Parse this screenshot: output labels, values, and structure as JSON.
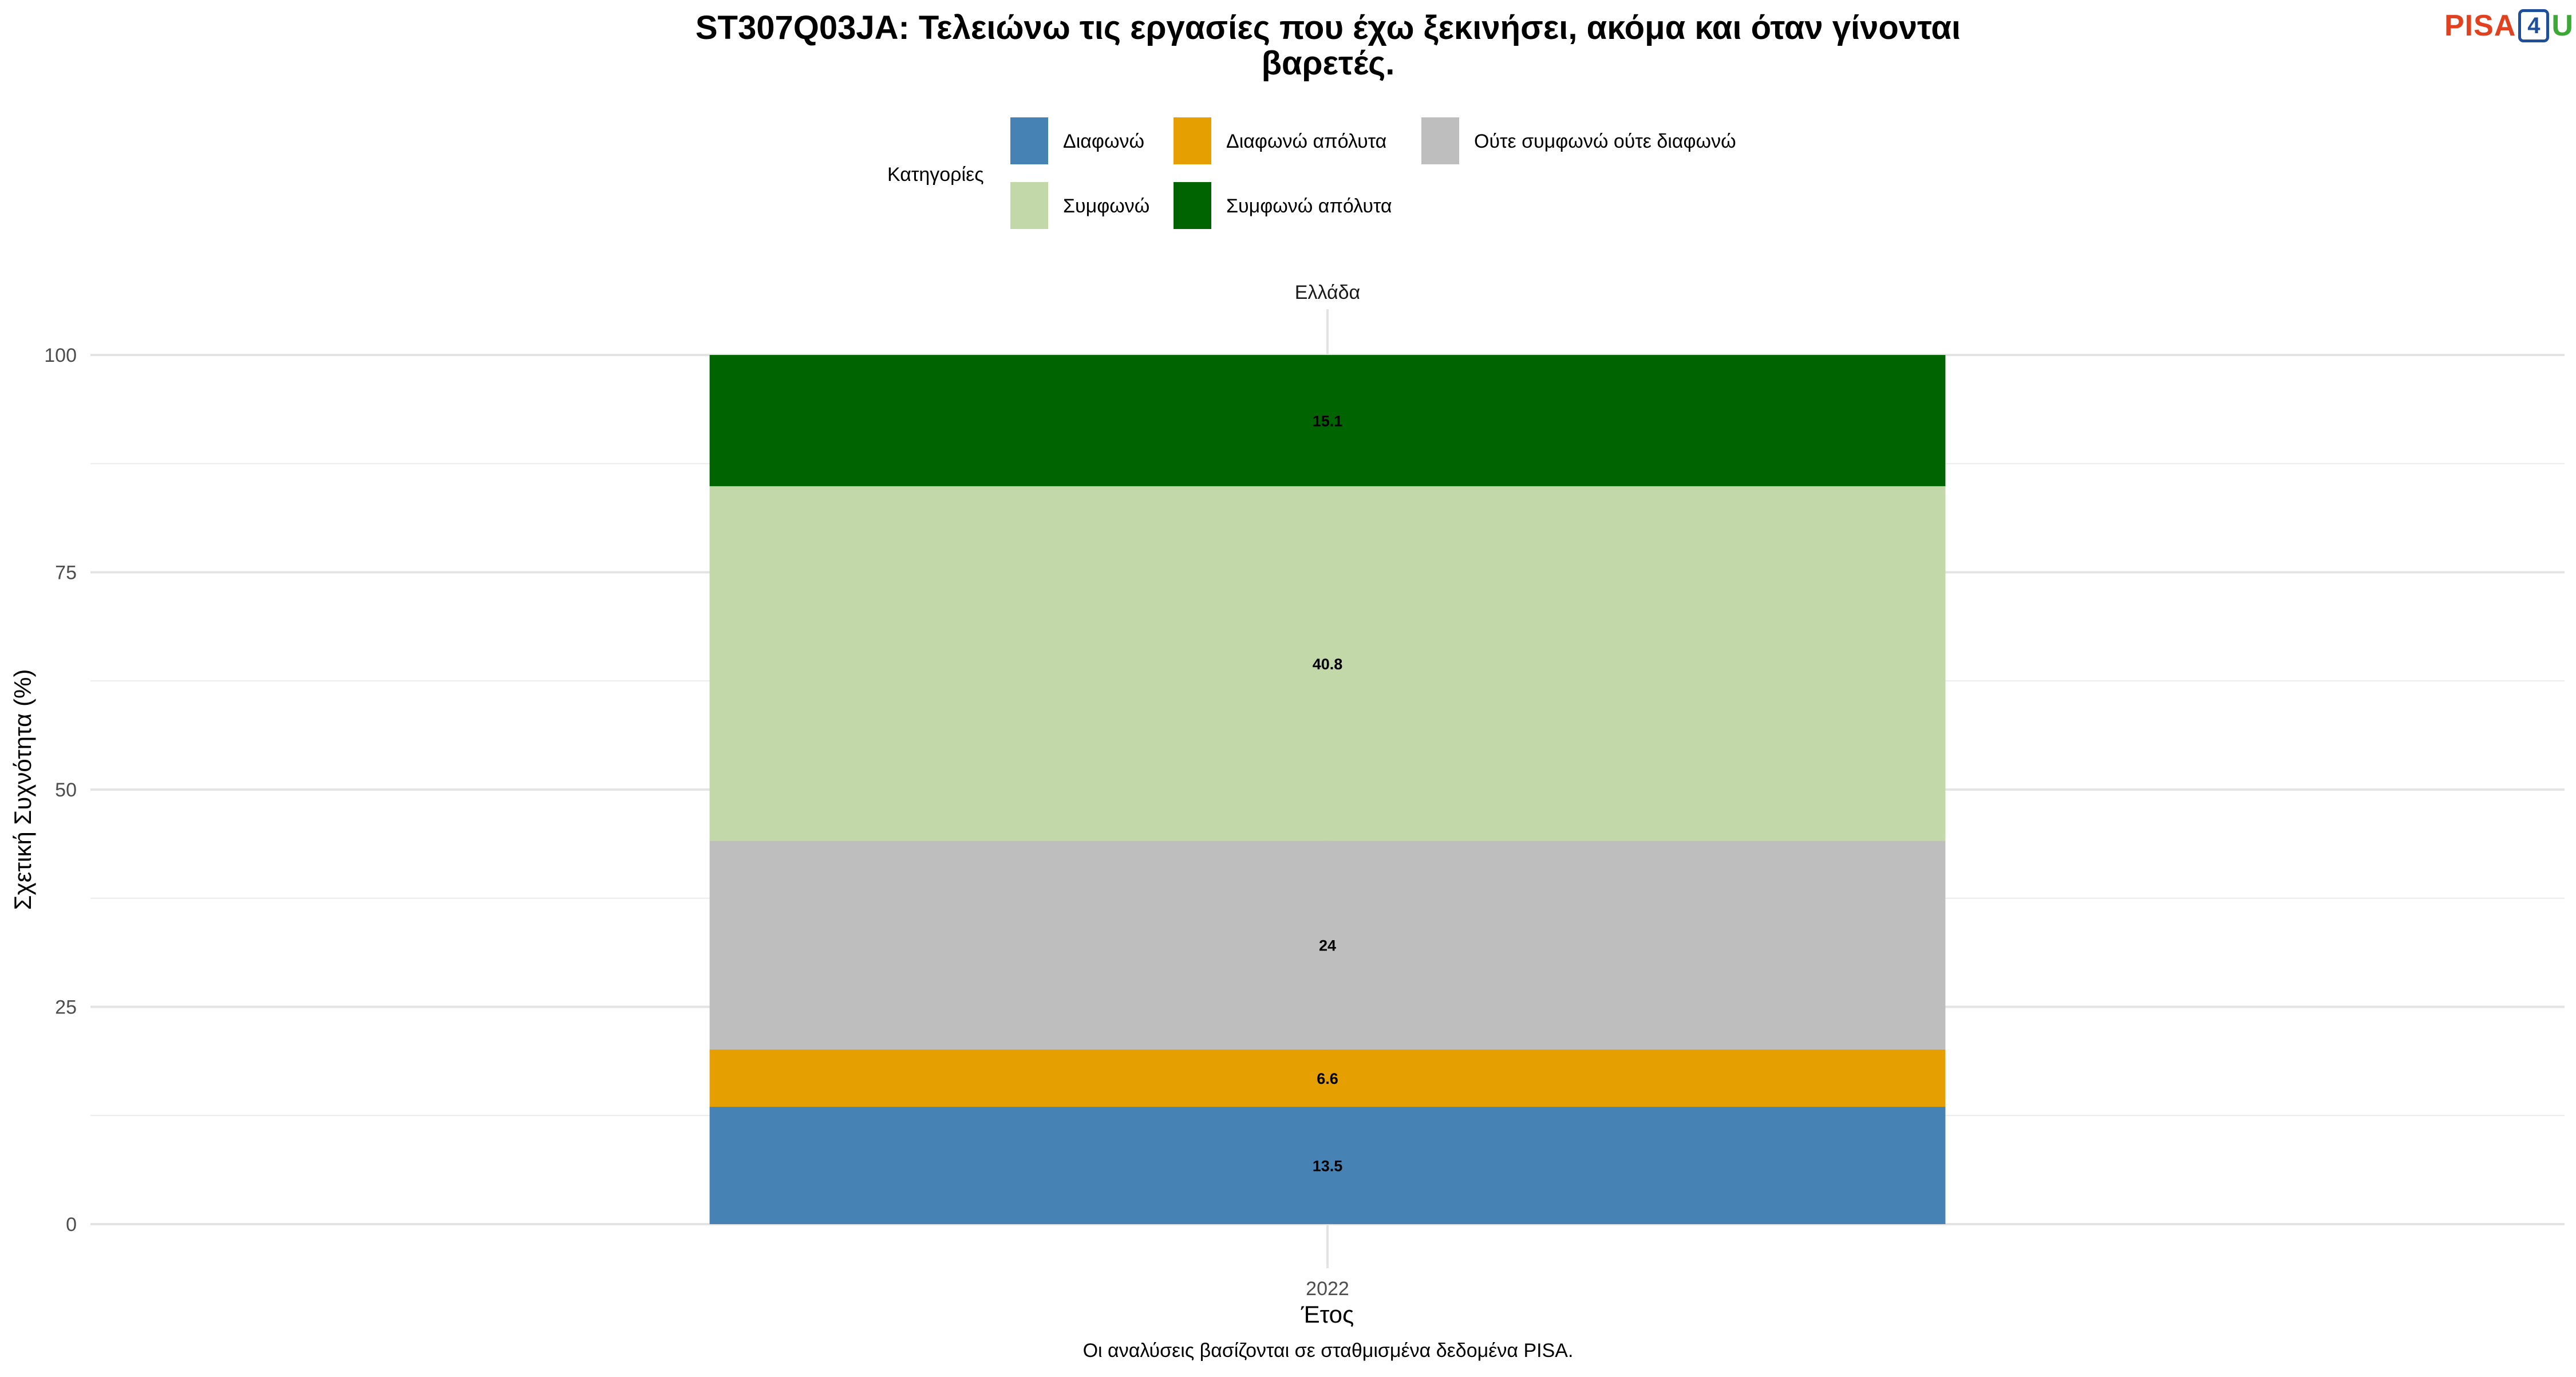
{
  "logo": {
    "left": "PISA",
    "middle": "4",
    "right": "U"
  },
  "chart_data": {
    "type": "bar",
    "stacked": true,
    "title": [
      "ST307Q03JA: Τελειώνω τις εργασίες που έχω ξεκινήσει, ακόμα και όταν γίνονται",
      "βαρετές."
    ],
    "facet_label": "Ελλάδα",
    "xlabel": "Έτος",
    "ylabel": "Σχετική Συχνότητα (%)",
    "caption": "Οι αναλύσεις βασίζονται σε σταθμισμένα δεδομένα PISA.",
    "categories": [
      "2022"
    ],
    "ylim": [
      0,
      100
    ],
    "yticks": [
      0,
      25,
      50,
      75,
      100
    ],
    "grid": true,
    "legend": {
      "title": "Κατηγορίες",
      "position": "top",
      "items": [
        {
          "label": "Διαφωνώ",
          "color": "#4682b4"
        },
        {
          "label": "Διαφωνώ απόλυτα",
          "color": "#e5a000"
        },
        {
          "label": "Ούτε συμφωνώ ούτε διαφωνώ",
          "color": "#bebebe"
        },
        {
          "label": "Συμφωνώ",
          "color": "#c3d8a8"
        },
        {
          "label": "Συμφωνώ απόλυτα",
          "color": "#006400"
        }
      ]
    },
    "series": [
      {
        "name": "Διαφωνώ",
        "color": "#4682b4",
        "values": [
          13.5
        ],
        "labels": [
          "13.5"
        ]
      },
      {
        "name": "Διαφωνώ απόλυτα",
        "color": "#e5a000",
        "values": [
          6.6
        ],
        "labels": [
          "6.6"
        ]
      },
      {
        "name": "Ούτε συμφωνώ ούτε διαφωνώ",
        "color": "#bebebe",
        "values": [
          24
        ],
        "labels": [
          "24"
        ]
      },
      {
        "name": "Συμφωνώ",
        "color": "#c3d8a8",
        "values": [
          40.8
        ],
        "labels": [
          "40.8"
        ]
      },
      {
        "name": "Συμφωνώ απόλυτα",
        "color": "#006400",
        "values": [
          15.1
        ],
        "labels": [
          "15.1"
        ]
      }
    ]
  }
}
